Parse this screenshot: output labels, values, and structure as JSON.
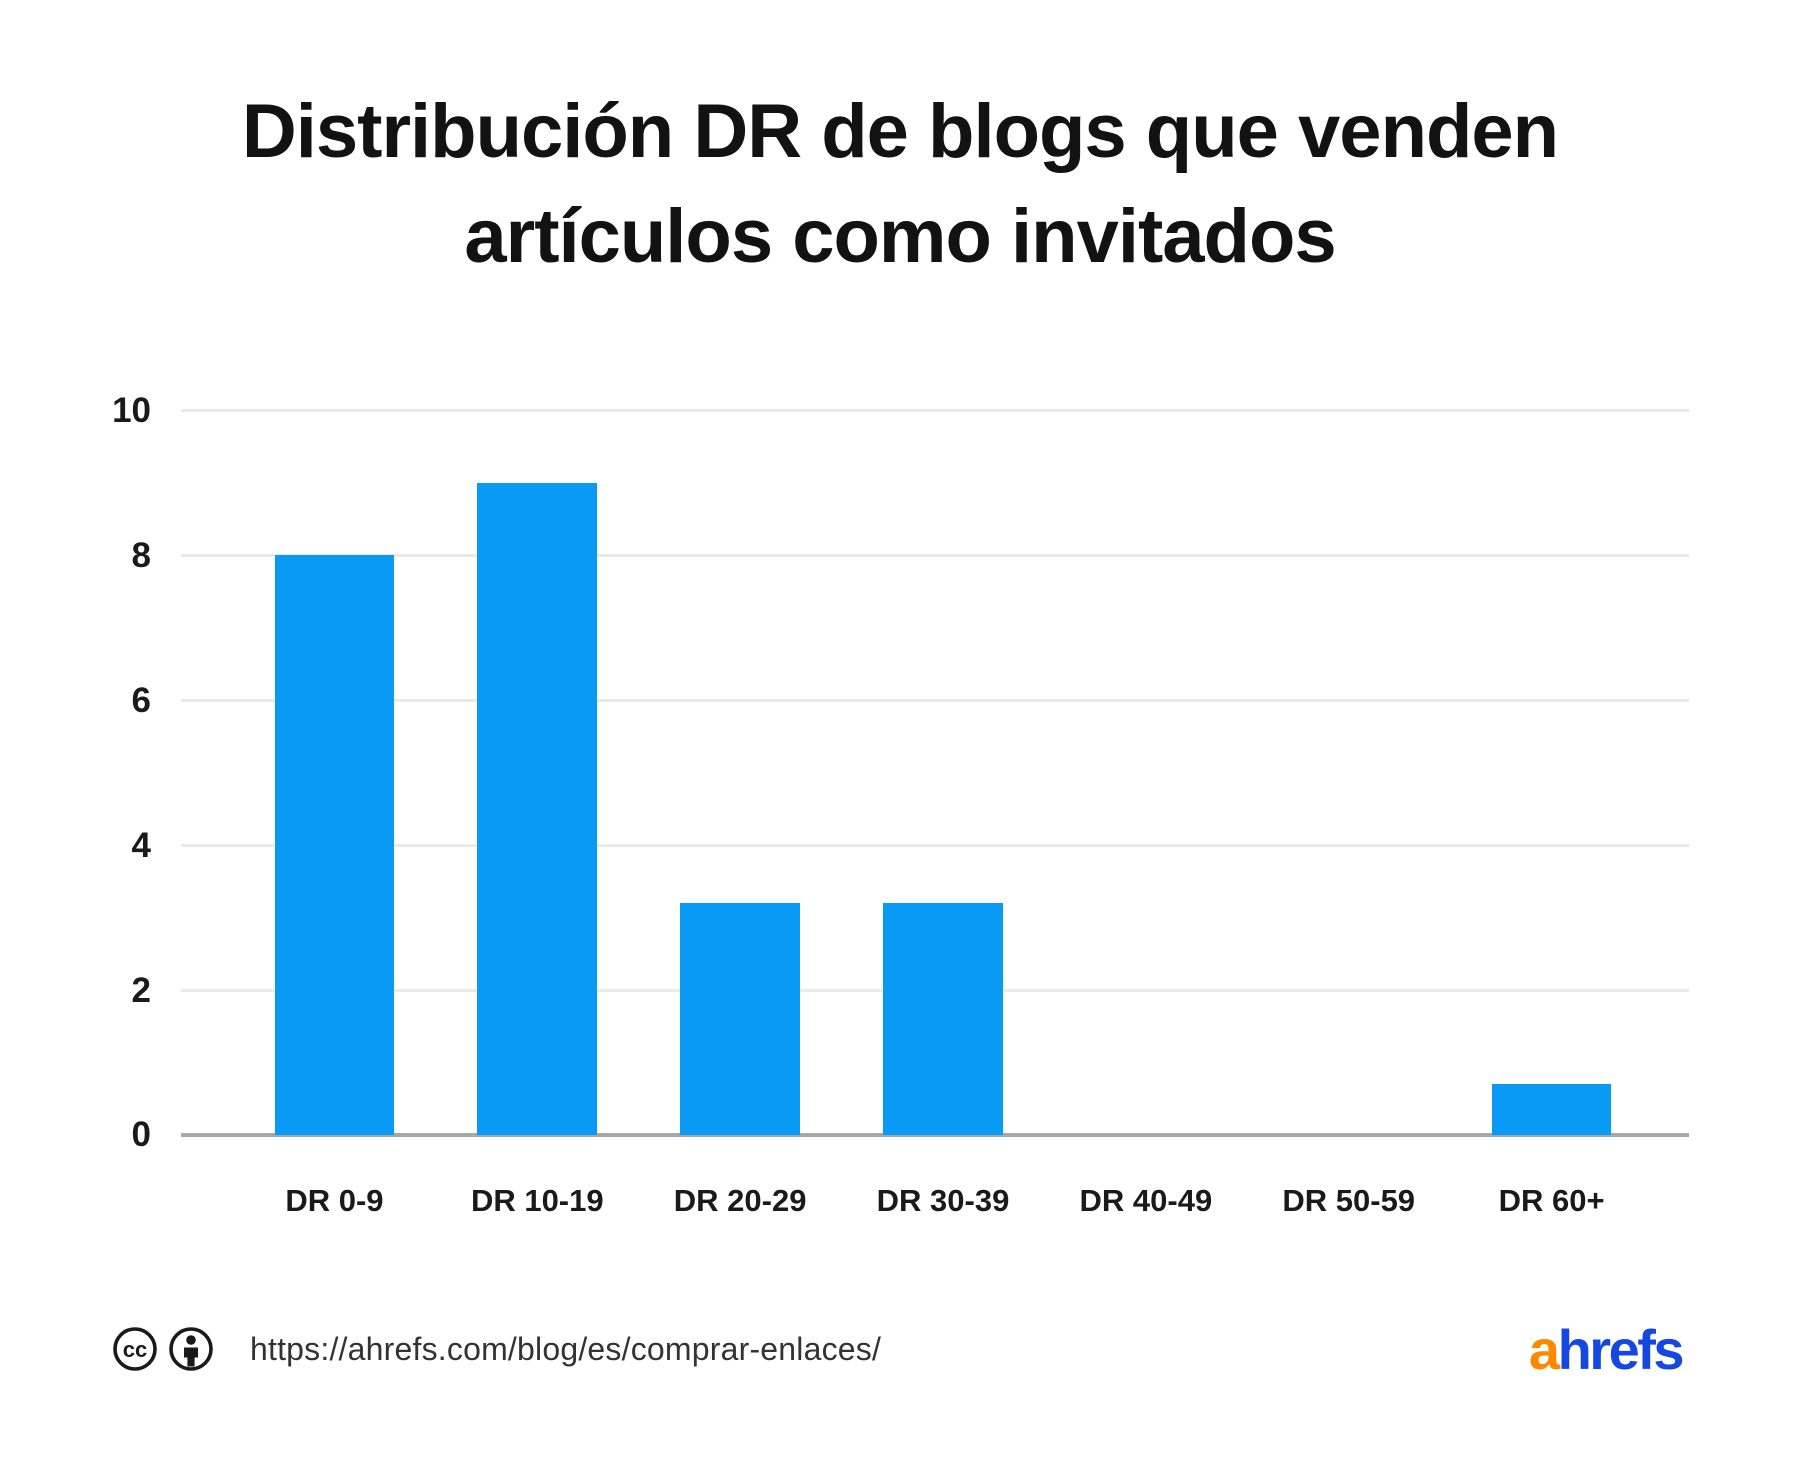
{
  "title": {
    "line1": "Distribución DR de blogs que venden",
    "line2": "artículos como invitados"
  },
  "chart_data": {
    "type": "bar",
    "title": "Distribución DR de blogs que venden artículos como invitados",
    "categories": [
      "DR 0-9",
      "DR 10-19",
      "DR 20-29",
      "DR 30-39",
      "DR 40-49",
      "DR 50-59",
      "DR 60+"
    ],
    "values": [
      8,
      9,
      3.2,
      3.2,
      0,
      0,
      0.7
    ],
    "xlabel": "",
    "ylabel": "",
    "ylim": [
      0,
      10
    ],
    "yticks": [
      0,
      2,
      4,
      6,
      8,
      10
    ],
    "grid": true,
    "legend": false,
    "bar_color": "#089af5",
    "gridline_color": "#eaeaec",
    "baseline_color": "#a8a8a8"
  },
  "footer": {
    "license": {
      "icons": [
        "cc-icon",
        "attribution-icon"
      ]
    },
    "source_url": "https://ahrefs.com/blog/es/comprar-enlaces/",
    "logo": {
      "part1": "a",
      "part2": "hrefs",
      "color1": "#ff8800",
      "color2": "#1548e0"
    }
  }
}
